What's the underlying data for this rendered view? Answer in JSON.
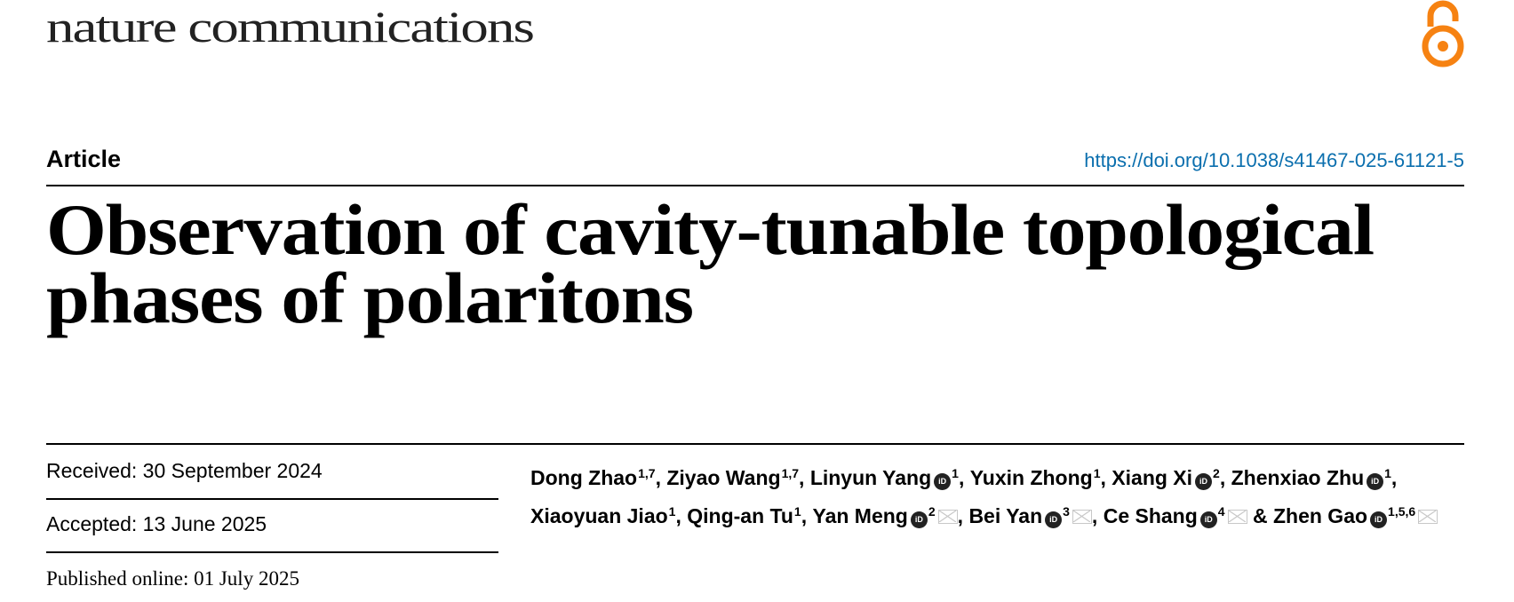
{
  "header": {
    "journal": "nature communications",
    "open_access_icon": "open-access-lock-icon",
    "open_access_color": "#f68212"
  },
  "article": {
    "type": "Article",
    "doi": "https://doi.org/10.1038/s41467-025-61121-5",
    "doi_color": "#0b6fae",
    "title_line1": "Observation of cavity-tunable topological",
    "title_line2": "phases of polaritons"
  },
  "dates": {
    "received": "Received: 30 September 2024",
    "accepted": "Accepted: 13 June 2025",
    "published": "Published online: 01 July 2025"
  },
  "authors": [
    {
      "name": "Dong Zhao",
      "sup": "1,7",
      "orcid": false,
      "email": false,
      "sep": ", "
    },
    {
      "name": "Ziyao Wang",
      "sup": "1,7",
      "orcid": false,
      "email": false,
      "sep": ", "
    },
    {
      "name": "Linyun Yang",
      "sup": "1",
      "orcid": true,
      "email": false,
      "sep": ", "
    },
    {
      "name": "Yuxin Zhong",
      "sup": "1",
      "orcid": false,
      "email": false,
      "sep": ", "
    },
    {
      "name": "Xiang Xi",
      "sup": "2",
      "orcid": true,
      "email": false,
      "sep": ", "
    },
    {
      "name": "Zhenxiao Zhu",
      "sup": "1",
      "orcid": true,
      "email": false,
      "sep": ", "
    },
    {
      "name": "Xiaoyuan Jiao",
      "sup": "1",
      "orcid": false,
      "email": false,
      "sep": ", "
    },
    {
      "name": "Qing-an Tu",
      "sup": "1",
      "orcid": false,
      "email": false,
      "sep": ", "
    },
    {
      "name": "Yan Meng",
      "sup": "2",
      "orcid": true,
      "email": true,
      "sep": ", "
    },
    {
      "name": "Bei Yan",
      "sup": "3",
      "orcid": true,
      "email": true,
      "sep": ", "
    },
    {
      "name": "Ce Shang",
      "sup": "4",
      "orcid": true,
      "email": true,
      "sep": " & "
    },
    {
      "name": "Zhen Gao",
      "sup": "1,5,6",
      "orcid": true,
      "email": true,
      "sep": ""
    }
  ],
  "orcid_icon_label": "iD"
}
